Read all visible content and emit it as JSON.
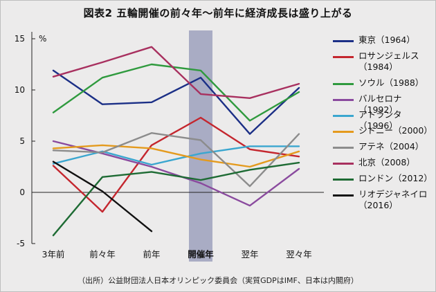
{
  "title": "図表2 五輪開催の前々年〜前年に経済成長は盛り上がる",
  "source": "（出所）公益財団法人日本オリンピック委員会（実質GDPはIMF、日本は内閣府）",
  "chart_data": {
    "type": "line",
    "title": "図表2 五輪開催の前々年〜前年に経済成長は盛り上がる",
    "ylabel": "%",
    "xlabel": "",
    "ylim": [
      -5,
      15
    ],
    "yticks": [
      "15",
      "10",
      "5",
      "0",
      "-5"
    ],
    "ytick_values": [
      15,
      10,
      5,
      0,
      -5
    ],
    "categories": [
      "3年前",
      "前々年",
      "前年",
      "開催年",
      "翌年",
      "翌々年"
    ],
    "highlight_category": "開催年",
    "grid": false,
    "legend_position": "right",
    "series": [
      {
        "name": "東京（1964）",
        "color": "#1b2f86",
        "values": [
          11.9,
          8.6,
          8.8,
          11.2,
          5.7,
          10.2
        ]
      },
      {
        "name": "ロサンジェルス（1984）",
        "color": "#c4262e",
        "values": [
          2.6,
          -1.9,
          4.6,
          7.3,
          4.2,
          3.5
        ]
      },
      {
        "name": "ソウル（1988）",
        "color": "#2f9a3e",
        "values": [
          7.8,
          11.2,
          12.5,
          11.9,
          7.0,
          9.8
        ]
      },
      {
        "name": "バルセロナ（1992）",
        "color": "#8a4a9e",
        "values": [
          5.0,
          3.8,
          2.5,
          0.9,
          -1.3,
          2.3
        ]
      },
      {
        "name": "アトランタ（1996）",
        "color": "#3aa6cf",
        "values": [
          2.8,
          4.0,
          2.7,
          3.8,
          4.5,
          4.5
        ]
      },
      {
        "name": "シドニー（2000）",
        "color": "#e49a1d",
        "values": [
          4.3,
          4.6,
          4.3,
          3.2,
          2.5,
          4.0
        ]
      },
      {
        "name": "アテネ（2004）",
        "color": "#8c8c8c",
        "values": [
          4.1,
          3.9,
          5.8,
          5.1,
          0.6,
          5.7
        ]
      },
      {
        "name": "北京（2008）",
        "color": "#a8305f",
        "values": [
          11.3,
          12.7,
          14.2,
          9.6,
          9.2,
          10.6
        ]
      },
      {
        "name": "ロンドン（2012）",
        "color": "#1e6b34",
        "values": [
          -4.2,
          1.5,
          2.0,
          1.2,
          2.2,
          2.9
        ]
      },
      {
        "name": "リオデジャネイロ（2016）",
        "color": "#111111",
        "values": [
          3.0,
          0.1,
          -3.8,
          null,
          null,
          null
        ]
      }
    ]
  },
  "legend_display": [
    "東京（1964）",
    "ロサンジェルス\n（1984）",
    "ソウル（1988）",
    "バルセロナ（1992）",
    "アトランタ（1996）",
    "シドニー（2000）",
    "アテネ（2004）",
    "北京（2008）",
    "ロンドン（2012）",
    "リオデジャネイロ\n（2016）"
  ]
}
